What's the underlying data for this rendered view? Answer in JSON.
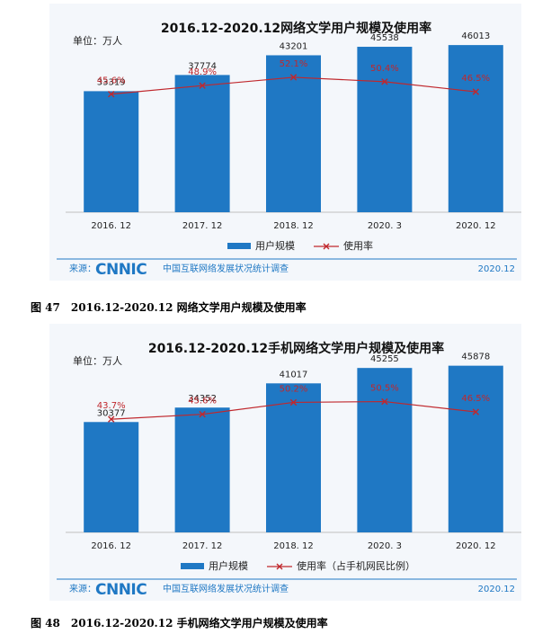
{
  "figures": [
    {
      "caption_number": "图 47",
      "caption_text": "2016.12-2020.12 网络文学用户规模及使用率"
    },
    {
      "caption_number": "图 48",
      "caption_text": "2016.12-2020.12 手机网络文学用户规模及使用率"
    }
  ],
  "colors": {
    "bar": "#1f78c4",
    "line": "#c0282d",
    "footer_blue": "#1f78c4",
    "panel_bg": "#f4f7fb"
  },
  "chart_data": [
    {
      "type": "bar",
      "title": "2016.12-2020.12网络文学用户规模及使用率",
      "unit_label": "单位：万人",
      "categories": [
        "2016. 12",
        "2017. 12",
        "2018. 12",
        "2020. 3",
        "2020. 12"
      ],
      "series": [
        {
          "name": "用户规模",
          "kind": "bar",
          "values": [
            33319,
            37774,
            43201,
            45538,
            46013
          ]
        },
        {
          "name": "使用率",
          "kind": "line",
          "values": [
            45.6,
            48.9,
            52.1,
            50.4,
            46.5
          ],
          "labels": [
            "45.6%",
            "48.9%",
            "52.1%",
            "50.4%",
            "46.5%"
          ]
        }
      ],
      "bar_ylim": [
        0,
        50000
      ],
      "line_ylim": [
        0,
        100
      ],
      "legend_position": "bottom",
      "footer": {
        "source_prefix": "来源：",
        "logo": "CNNIC",
        "org": "中国互联网络发展状况统计调查",
        "date": "2020.12"
      }
    },
    {
      "type": "bar",
      "title": "2016.12-2020.12手机网络文学用户规模及使用率",
      "unit_label": "单位：万人",
      "categories": [
        "2016. 12",
        "2017. 12",
        "2018. 12",
        "2020. 3",
        "2020. 12"
      ],
      "series": [
        {
          "name": "用户规模",
          "kind": "bar",
          "values": [
            30377,
            34352,
            41017,
            45255,
            45878
          ]
        },
        {
          "name": "使用率（占手机网民比例）",
          "kind": "line",
          "values": [
            43.7,
            45.6,
            50.2,
            50.5,
            46.5
          ],
          "labels": [
            "43.7%",
            "45.6%",
            "50.2%",
            "50.5%",
            "46.5%"
          ]
        }
      ],
      "bar_ylim": [
        0,
        50000
      ],
      "line_ylim": [
        0,
        100
      ],
      "legend_position": "bottom",
      "footer": {
        "source_prefix": "来源：",
        "logo": "CNNIC",
        "org": "中国互联网络发展状况统计调查",
        "date": "2020.12"
      }
    }
  ]
}
